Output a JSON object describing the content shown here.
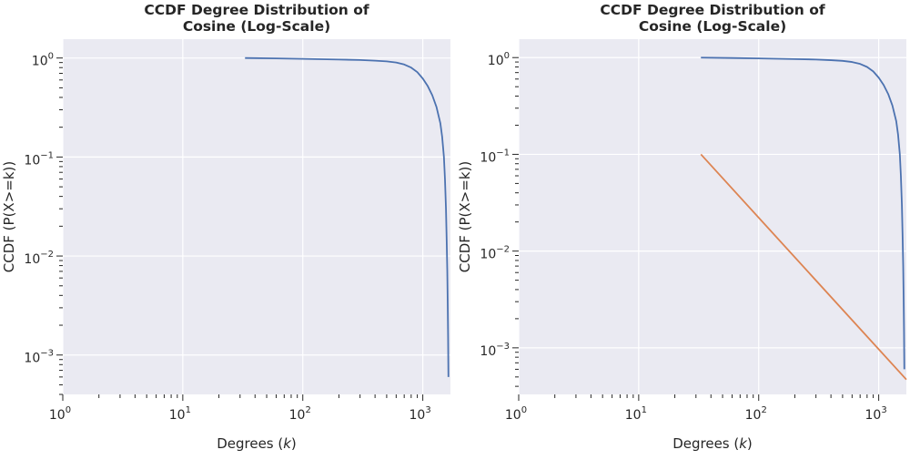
{
  "chart_data": [
    {
      "type": "line",
      "title": "CCDF Degree Distribution of Cosine (Log-Scale)",
      "title_lines": [
        "CCDF Degree Distribution of",
        "Cosine (Log-Scale)"
      ],
      "xlabel": "Degrees (𝑘)",
      "xlabel_parts": [
        "Degrees (",
        "k",
        ")"
      ],
      "ylabel": "CCDF (P(X>=k))",
      "x_scale": "log",
      "y_scale": "log",
      "xlim": [
        1,
        1700
      ],
      "ylim": [
        0.0004,
        1.55
      ],
      "grid": true,
      "x_ticks": [
        1,
        10,
        100,
        1000
      ],
      "x_tick_labels": [
        {
          "base": "10",
          "exp": "0"
        },
        {
          "base": "10",
          "exp": "1"
        },
        {
          "base": "10",
          "exp": "2"
        },
        {
          "base": "10",
          "exp": "3"
        }
      ],
      "y_ticks": [
        0.001,
        0.01,
        0.1,
        1
      ],
      "y_tick_labels": [
        {
          "base": "10",
          "exp": "−3"
        },
        {
          "base": "10",
          "exp": "−2"
        },
        {
          "base": "10",
          "exp": "−1"
        },
        {
          "base": "10",
          "exp": "0"
        }
      ],
      "series": [
        {
          "color": "#4c72b0",
          "points": [
            [
              33,
              1.0
            ],
            [
              60,
              0.99
            ],
            [
              100,
              0.98
            ],
            [
              200,
              0.965
            ],
            [
              300,
              0.955
            ],
            [
              400,
              0.94
            ],
            [
              500,
              0.925
            ],
            [
              600,
              0.9
            ],
            [
              700,
              0.86
            ],
            [
              800,
              0.8
            ],
            [
              900,
              0.72
            ],
            [
              1000,
              0.62
            ],
            [
              1100,
              0.52
            ],
            [
              1200,
              0.42
            ],
            [
              1300,
              0.32
            ],
            [
              1400,
              0.22
            ],
            [
              1450,
              0.16
            ],
            [
              1500,
              0.1
            ],
            [
              1530,
              0.06
            ],
            [
              1560,
              0.03
            ],
            [
              1580,
              0.015
            ],
            [
              1600,
              0.007
            ],
            [
              1615,
              0.003
            ],
            [
              1625,
              0.0015
            ],
            [
              1635,
              0.0006
            ]
          ]
        }
      ]
    },
    {
      "type": "line",
      "title": "CCDF Degree Distribution of Cosine (Log-Scale)",
      "title_lines": [
        "CCDF Degree Distribution of",
        "Cosine (Log-Scale)"
      ],
      "xlabel": "Degrees (𝑘)",
      "xlabel_parts": [
        "Degrees (",
        "k",
        ")"
      ],
      "ylabel": "CCDF (P(X>=k))",
      "x_scale": "log",
      "y_scale": "log",
      "xlim": [
        1,
        1700
      ],
      "ylim": [
        0.00033,
        1.55
      ],
      "grid": true,
      "x_ticks": [
        1,
        10,
        100,
        1000
      ],
      "x_tick_labels": [
        {
          "base": "10",
          "exp": "0"
        },
        {
          "base": "10",
          "exp": "1"
        },
        {
          "base": "10",
          "exp": "2"
        },
        {
          "base": "10",
          "exp": "3"
        }
      ],
      "y_ticks": [
        0.001,
        0.01,
        0.1,
        1
      ],
      "y_tick_labels": [
        {
          "base": "10",
          "exp": "−3"
        },
        {
          "base": "10",
          "exp": "−2"
        },
        {
          "base": "10",
          "exp": "−1"
        },
        {
          "base": "10",
          "exp": "0"
        }
      ],
      "series": [
        {
          "color": "#4c72b0",
          "points": [
            [
              33,
              1.0
            ],
            [
              60,
              0.99
            ],
            [
              100,
              0.98
            ],
            [
              200,
              0.965
            ],
            [
              300,
              0.955
            ],
            [
              400,
              0.94
            ],
            [
              500,
              0.925
            ],
            [
              600,
              0.9
            ],
            [
              700,
              0.86
            ],
            [
              800,
              0.8
            ],
            [
              900,
              0.72
            ],
            [
              1000,
              0.62
            ],
            [
              1100,
              0.52
            ],
            [
              1200,
              0.42
            ],
            [
              1300,
              0.32
            ],
            [
              1400,
              0.22
            ],
            [
              1450,
              0.16
            ],
            [
              1500,
              0.1
            ],
            [
              1530,
              0.06
            ],
            [
              1560,
              0.03
            ],
            [
              1580,
              0.015
            ],
            [
              1600,
              0.007
            ],
            [
              1615,
              0.003
            ],
            [
              1625,
              0.0015
            ],
            [
              1635,
              0.0006
            ]
          ]
        },
        {
          "color": "#dd8452",
          "points": [
            [
              33,
              0.1
            ],
            [
              1700,
              0.00047
            ]
          ]
        }
      ]
    }
  ]
}
